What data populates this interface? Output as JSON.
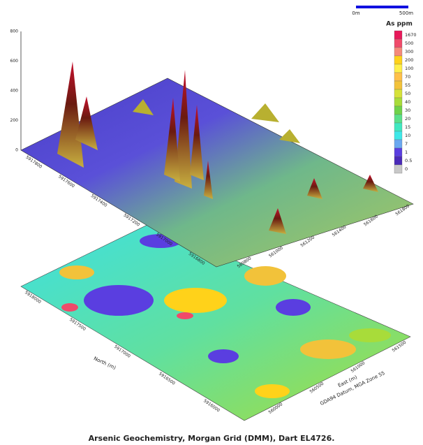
{
  "title": "Arsenic Geochemistry, Morgan Grid (DMM), Dart EL4726.",
  "scale_bar": {
    "start": "0m",
    "end": "500m"
  },
  "legend": {
    "title": "As ppm",
    "entries": [
      {
        "label": "1670",
        "color": "#e8195a"
      },
      {
        "label": "500",
        "color": "#f04a6a"
      },
      {
        "label": "300",
        "color": "#f58a7a"
      },
      {
        "label": "200",
        "color": "#ffd21a"
      },
      {
        "label": "100",
        "color": "#fff04a"
      },
      {
        "label": "70",
        "color": "#ffc04a"
      },
      {
        "label": "55",
        "color": "#f2c23a"
      },
      {
        "label": "50",
        "color": "#d6e23a"
      },
      {
        "label": "40",
        "color": "#a8dc3a"
      },
      {
        "label": "30",
        "color": "#6fd24a"
      },
      {
        "label": "20",
        "color": "#5ae08a"
      },
      {
        "label": "15",
        "color": "#40e8c0"
      },
      {
        "label": "10",
        "color": "#3ee8e8"
      },
      {
        "label": "7",
        "color": "#6aa8f0"
      },
      {
        "label": "1",
        "color": "#5a3ee0"
      },
      {
        "label": "0.5",
        "color": "#4a2ab8"
      },
      {
        "label": "0",
        "color": "#c8c8c8"
      }
    ]
  },
  "z_axis": {
    "ticks": [
      "800",
      "600",
      "400",
      "200",
      "0"
    ]
  },
  "surface_north_ticks": [
    "5917800",
    "5917600",
    "5917400",
    "5917200",
    "5917000",
    "5916800"
  ],
  "surface_east_ticks": [
    "561800",
    "561600",
    "561400",
    "561200",
    "561000",
    "560800"
  ],
  "map_north_ticks": [
    "5918000",
    "5917500",
    "5917000",
    "5916500",
    "5916000"
  ],
  "map_east_ticks": [
    "560000",
    "560500",
    "561000",
    "561500"
  ],
  "map_axis": {
    "north_label": "North (m)",
    "east_label": "East (m)",
    "datum": "GDA94 Datum, MGA Zone 55"
  }
}
